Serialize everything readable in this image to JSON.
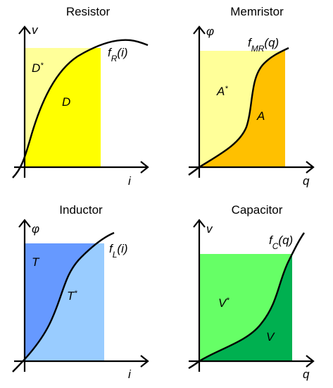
{
  "panels": [
    {
      "title": "Resistor",
      "y_axis": "v",
      "x_axis": "i",
      "curve_label": {
        "base": "f",
        "sub": "R",
        "arg": "(i)"
      },
      "regions": [
        {
          "label": "D",
          "sup": "*"
        },
        {
          "label": "D"
        }
      ]
    },
    {
      "title": "Memristor",
      "y_axis": "φ",
      "x_axis": "q",
      "curve_label": {
        "base": "f",
        "sub": "MR",
        "arg": "(q)"
      },
      "regions": [
        {
          "label": "A",
          "sup": "*"
        },
        {
          "label": "A"
        }
      ]
    },
    {
      "title": "Inductor",
      "y_axis": "φ",
      "x_axis": "i",
      "curve_label": {
        "base": "f",
        "sub": "L",
        "arg": "(i)"
      },
      "regions": [
        {
          "label": "T"
        },
        {
          "label": "T",
          "sup": "*"
        }
      ]
    },
    {
      "title": "Capacitor",
      "y_axis": "v",
      "x_axis": "q",
      "curve_label": {
        "base": "f",
        "sub": "C",
        "arg": "(q)"
      },
      "regions": [
        {
          "label": "V",
          "sup": "*"
        },
        {
          "label": "V"
        }
      ]
    }
  ]
}
